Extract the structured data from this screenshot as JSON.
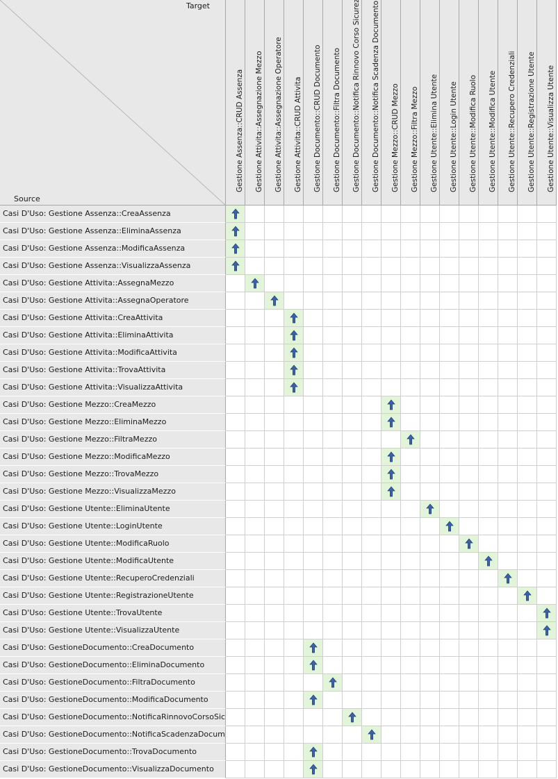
{
  "header": {
    "target_label": "Target",
    "source_label": "Source"
  },
  "columns": [
    "Gestione Assenza::CRUD Assenza",
    "Gestione Attivita::Assegnazione Mezzo",
    "Gestione Attivita::Assegnazione Operatore",
    "Gestione Attivita::CRUD Attivita",
    "Gestione Documento::CRUD Documento",
    "Gestione Documento::Filtra Documento",
    "Gestione Documento::Notifica Rinnovo Corso Sicurezza",
    "Gestione Documento::Notifica Scadenza Documento",
    "Gestione Mezzo::CRUD Mezzo",
    "Gestione Mezzo::Filtra Mezzo",
    "Gestione Utente::Elimina Utente",
    "Gestione Utente::Login Utente",
    "Gestione Utente::Modifica Ruolo",
    "Gestione Utente::Modifica Utente",
    "Gestione Utente::Recupero Credenziali",
    "Gestione Utente::Registrazione Utente",
    "Gestione Utente::Visualizza Utente"
  ],
  "rows": [
    {
      "label": "Casi D'Uso: Gestione Assenza::CreaAssenza",
      "target": 0
    },
    {
      "label": "Casi D'Uso: Gestione Assenza::EliminaAssenza",
      "target": 0
    },
    {
      "label": "Casi D'Uso: Gestione Assenza::ModificaAssenza",
      "target": 0
    },
    {
      "label": "Casi D'Uso: Gestione Assenza::VisualizzaAssenza",
      "target": 0
    },
    {
      "label": "Casi D'Uso: Gestione Attivita::AssegnaMezzo",
      "target": 1
    },
    {
      "label": "Casi D'Uso: Gestione Attivita::AssegnaOperatore",
      "target": 2
    },
    {
      "label": "Casi D'Uso: Gestione Attivita::CreaAttivita",
      "target": 3
    },
    {
      "label": "Casi D'Uso: Gestione Attivita::EliminaAttivita",
      "target": 3
    },
    {
      "label": "Casi D'Uso: Gestione Attivita::ModificaAttivita",
      "target": 3
    },
    {
      "label": "Casi D'Uso: Gestione Attivita::TrovaAttivita",
      "target": 3
    },
    {
      "label": "Casi D'Uso: Gestione Attivita::VisualizzaAttivita",
      "target": 3
    },
    {
      "label": "Casi D'Uso: Gestione Mezzo::CreaMezzo",
      "target": 8
    },
    {
      "label": "Casi D'Uso: Gestione Mezzo::EliminaMezzo",
      "target": 8
    },
    {
      "label": "Casi D'Uso: Gestione Mezzo::FiltraMezzo",
      "target": 9
    },
    {
      "label": "Casi D'Uso: Gestione Mezzo::ModificaMezzo",
      "target": 8
    },
    {
      "label": "Casi D'Uso: Gestione Mezzo::TrovaMezzo",
      "target": 8
    },
    {
      "label": "Casi D'Uso: Gestione Mezzo::VisualizzaMezzo",
      "target": 8
    },
    {
      "label": "Casi D'Uso: Gestione Utente::EliminaUtente",
      "target": 10
    },
    {
      "label": "Casi D'Uso: Gestione Utente::LoginUtente",
      "target": 11
    },
    {
      "label": "Casi D'Uso: Gestione Utente::ModificaRuolo",
      "target": 12
    },
    {
      "label": "Casi D'Uso: Gestione Utente::ModificaUtente",
      "target": 13
    },
    {
      "label": "Casi D'Uso: Gestione Utente::RecuperoCredenziali",
      "target": 14
    },
    {
      "label": "Casi D'Uso: Gestione Utente::RegistrazioneUtente",
      "target": 15
    },
    {
      "label": "Casi D'Uso: Gestione Utente::TrovaUtente",
      "target": 16
    },
    {
      "label": "Casi D'Uso: Gestione Utente::VisualizzaUtente",
      "target": 16
    },
    {
      "label": "Casi D'Uso: GestioneDocumento::CreaDocumento",
      "target": 4
    },
    {
      "label": "Casi D'Uso: GestioneDocumento::EliminaDocumento",
      "target": 4
    },
    {
      "label": "Casi D'Uso: GestioneDocumento::FiltraDocumento",
      "target": 5
    },
    {
      "label": "Casi D'Uso: GestioneDocumento::ModificaDocumento",
      "target": 4
    },
    {
      "label": "Casi D'Uso: GestioneDocumento::NotificaRinnovoCorsoSicurezza",
      "target": 6
    },
    {
      "label": "Casi D'Uso: GestioneDocumento::NotificaScadenzaDocumento",
      "target": 7
    },
    {
      "label": "Casi D'Uso: GestioneDocumento::TrovaDocumento",
      "target": 4
    },
    {
      "label": "Casi D'Uso: GestioneDocumento::VisualizzaDocumento",
      "target": 4
    }
  ],
  "icons": {
    "dependency": "dependency-arrow-up-icon"
  },
  "colors": {
    "header_bg": "#e8e8e8",
    "cell_on_bg": "#e3f5d9",
    "arrow": "#3a63a8"
  }
}
